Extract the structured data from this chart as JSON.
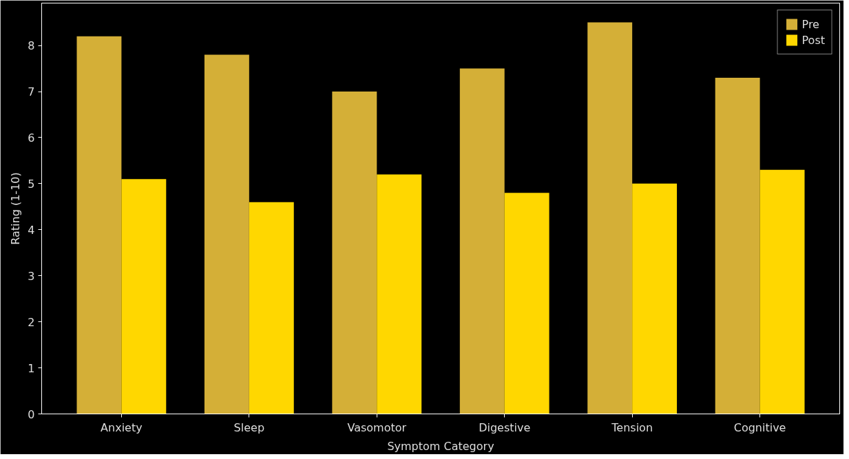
{
  "chart_data": {
    "type": "bar",
    "xlabel": "Symptom Category",
    "ylabel": "Rating (1-10)",
    "categories": [
      "Anxiety",
      "Sleep",
      "Vasomotor",
      "Digestive",
      "Tension",
      "Cognitive"
    ],
    "series": [
      {
        "name": "Pre",
        "color": "#d4af37",
        "values": [
          8.2,
          7.8,
          7.0,
          7.5,
          8.5,
          7.3
        ]
      },
      {
        "name": "Post",
        "color": "#ffd700",
        "values": [
          5.1,
          4.6,
          5.2,
          4.8,
          5.0,
          5.3
        ]
      }
    ],
    "ylim": [
      0,
      8.92
    ],
    "yticks": [
      0,
      1,
      2,
      3,
      4,
      5,
      6,
      7,
      8
    ],
    "grid": false,
    "legend": "top right"
  }
}
